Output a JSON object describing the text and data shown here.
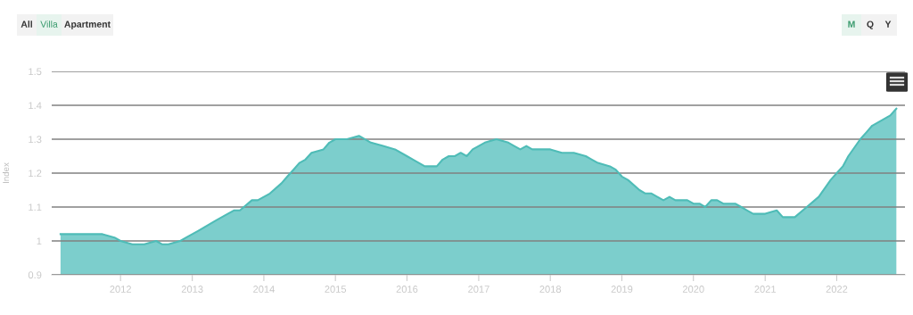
{
  "chart_data": {
    "type": "area",
    "ylabel": "Index",
    "annotations": [
      "All",
      "Villa",
      "Apartment",
      "M",
      "Q",
      "Y"
    ],
    "x": [
      "2011-03",
      "2011-05",
      "2011-08",
      "2011-10",
      "2011-12",
      "2012-01",
      "2012-03",
      "2012-05",
      "2012-07",
      "2012-08",
      "2012-09",
      "2012-11",
      "2012-12",
      "2013-02",
      "2013-05",
      "2013-07",
      "2013-08",
      "2013-09",
      "2013-11",
      "2013-12",
      "2014-02",
      "2014-04",
      "2014-05",
      "2014-06",
      "2014-07",
      "2014-08",
      "2014-09",
      "2014-11",
      "2014-12",
      "2015-01",
      "2015-03",
      "2015-05",
      "2015-07",
      "2015-09",
      "2015-11",
      "2016-01",
      "2016-02",
      "2016-04",
      "2016-05",
      "2016-06",
      "2016-07",
      "2016-08",
      "2016-09",
      "2016-10",
      "2016-11",
      "2016-12",
      "2017-02",
      "2017-04",
      "2017-06",
      "2017-07",
      "2017-08",
      "2017-09",
      "2017-10",
      "2017-11",
      "2017-12",
      "2018-01",
      "2018-03",
      "2018-05",
      "2018-07",
      "2018-08",
      "2018-09",
      "2018-11",
      "2018-12",
      "2019-01",
      "2019-02",
      "2019-04",
      "2019-05",
      "2019-06",
      "2019-07",
      "2019-08",
      "2019-09",
      "2019-10",
      "2019-11",
      "2019-12",
      "2020-01",
      "2020-02",
      "2020-03",
      "2020-04",
      "2020-05",
      "2020-06",
      "2020-07",
      "2020-08",
      "2020-09",
      "2020-10",
      "2020-11",
      "2020-12",
      "2021-01",
      "2021-03",
      "2021-04",
      "2021-06",
      "2021-08",
      "2021-10",
      "2021-12",
      "2022-01",
      "2022-02",
      "2022-03",
      "2022-05",
      "2022-06",
      "2022-07",
      "2022-09",
      "2022-10",
      "2022-11"
    ],
    "series": [
      {
        "color": "#79cdcb",
        "values": [
          1.02,
          1.02,
          1.02,
          1.02,
          1.01,
          1.0,
          0.99,
          0.99,
          1.0,
          0.99,
          0.99,
          1.0,
          1.01,
          1.03,
          1.06,
          1.08,
          1.09,
          1.09,
          1.12,
          1.12,
          1.14,
          1.17,
          1.19,
          1.21,
          1.23,
          1.24,
          1.26,
          1.27,
          1.29,
          1.3,
          1.3,
          1.31,
          1.29,
          1.28,
          1.27,
          1.25,
          1.24,
          1.22,
          1.22,
          1.22,
          1.24,
          1.25,
          1.25,
          1.26,
          1.25,
          1.27,
          1.29,
          1.3,
          1.29,
          1.28,
          1.27,
          1.28,
          1.27,
          1.27,
          1.27,
          1.27,
          1.26,
          1.26,
          1.25,
          1.24,
          1.23,
          1.22,
          1.21,
          1.19,
          1.18,
          1.15,
          1.14,
          1.14,
          1.13,
          1.12,
          1.13,
          1.12,
          1.12,
          1.12,
          1.11,
          1.11,
          1.1,
          1.12,
          1.12,
          1.11,
          1.11,
          1.11,
          1.1,
          1.09,
          1.08,
          1.08,
          1.08,
          1.09,
          1.07,
          1.07,
          1.1,
          1.13,
          1.18,
          1.2,
          1.22,
          1.25,
          1.3,
          1.32,
          1.34,
          1.36,
          1.37,
          1.39
        ]
      }
    ],
    "xlim": [
      "2011-01-15",
      "2022-12-15"
    ],
    "xticks": [
      "2012",
      "2013",
      "2014",
      "2015",
      "2016",
      "2017",
      "2018",
      "2019",
      "2020",
      "2021",
      "2022"
    ],
    "ylim": [
      0.9,
      1.5
    ],
    "yticks": [
      0.9,
      1,
      1.1,
      1.2,
      1.3,
      1.4,
      1.5
    ],
    "grid": "y"
  }
}
